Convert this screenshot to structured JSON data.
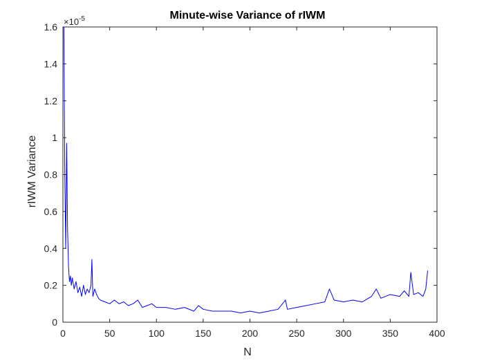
{
  "chart_data": {
    "type": "line",
    "title": "Minute-wise Variance of rIWM",
    "xlabel": "N",
    "ylabel": "rIWM Variance",
    "y_exponent_label": "×10",
    "y_exponent_power": "-5",
    "xlim": [
      0,
      400
    ],
    "ylim": [
      0,
      1.6
    ],
    "x_ticks": [
      "0",
      "50",
      "100",
      "150",
      "200",
      "250",
      "300",
      "350",
      "400"
    ],
    "y_ticks": [
      "0",
      "0.2",
      "0.4",
      "0.6",
      "0.8",
      "1",
      "1.2",
      "1.4",
      "1.6"
    ],
    "grid": false,
    "line_color": "#0000ff",
    "series": [
      {
        "x": [
          1,
          2,
          3,
          4,
          5,
          6,
          7,
          8,
          9,
          10,
          12,
          14,
          16,
          18,
          20,
          22,
          24,
          26,
          28,
          30,
          31,
          32,
          34,
          36,
          38,
          40,
          45,
          50,
          55,
          60,
          65,
          70,
          75,
          80,
          85,
          90,
          95,
          100,
          110,
          120,
          130,
          140,
          145,
          150,
          160,
          170,
          180,
          190,
          200,
          210,
          220,
          230,
          238,
          240,
          250,
          260,
          270,
          280,
          285,
          290,
          300,
          310,
          320,
          330,
          335,
          340,
          350,
          360,
          365,
          370,
          372,
          375,
          380,
          385,
          388,
          390
        ],
        "y": [
          1.6,
          0.8,
          0.4,
          0.97,
          0.5,
          0.3,
          0.22,
          0.25,
          0.2,
          0.24,
          0.18,
          0.22,
          0.16,
          0.19,
          0.14,
          0.2,
          0.15,
          0.18,
          0.16,
          0.2,
          0.34,
          0.14,
          0.18,
          0.15,
          0.13,
          0.12,
          0.11,
          0.1,
          0.12,
          0.1,
          0.11,
          0.09,
          0.1,
          0.12,
          0.08,
          0.09,
          0.1,
          0.08,
          0.08,
          0.07,
          0.08,
          0.06,
          0.09,
          0.07,
          0.06,
          0.06,
          0.06,
          0.05,
          0.06,
          0.05,
          0.06,
          0.07,
          0.12,
          0.07,
          0.08,
          0.09,
          0.1,
          0.11,
          0.18,
          0.12,
          0.11,
          0.12,
          0.11,
          0.14,
          0.18,
          0.13,
          0.15,
          0.14,
          0.17,
          0.14,
          0.27,
          0.15,
          0.16,
          0.14,
          0.18,
          0.28
        ]
      }
    ]
  }
}
